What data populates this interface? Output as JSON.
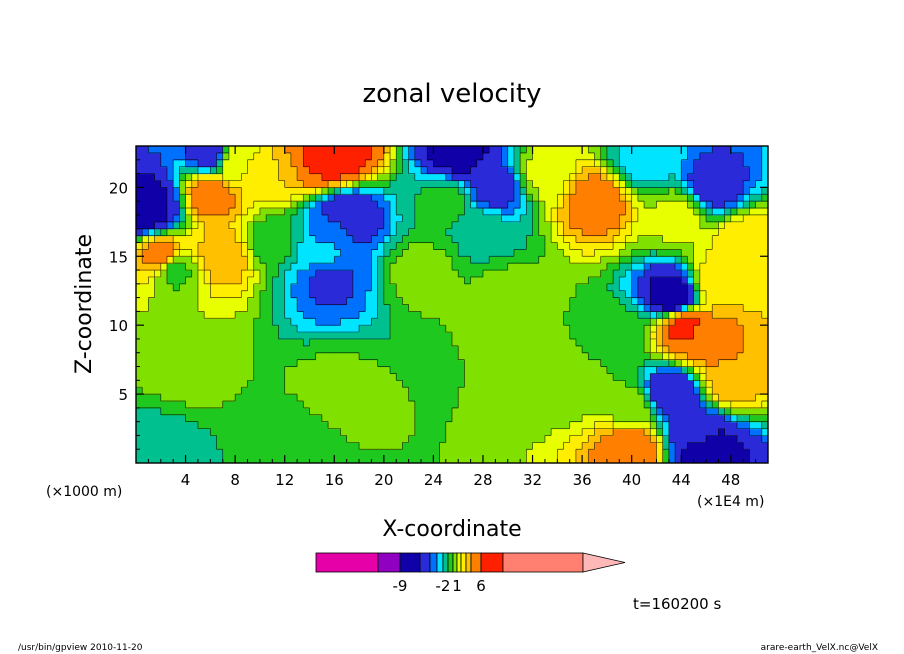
{
  "chart_data": {
    "type": "heatmap",
    "title": "zonal velocity",
    "xlabel": "X-coordinate",
    "ylabel": "Z-coordinate",
    "x_unit_left": "(×1000 m)",
    "x_unit_right": "(×1E4 m)",
    "xlim": [
      0,
      51
    ],
    "ylim": [
      0,
      23
    ],
    "x_ticks": [
      4,
      8,
      12,
      16,
      20,
      24,
      28,
      32,
      36,
      40,
      44,
      48
    ],
    "y_ticks": [
      5,
      10,
      15,
      20
    ],
    "time_label": "t=160200 s",
    "colorbar": {
      "tick_labels": [
        {
          "label": "-9",
          "value": -9
        },
        {
          "label": "-2",
          "value": -2
        },
        {
          "label": "1",
          "value": 1
        },
        {
          "label": "6",
          "value": 6
        }
      ],
      "levels": [
        -18,
        -12,
        -9,
        -6,
        -4,
        -3,
        -2,
        -1,
        0,
        1,
        2,
        3,
        4,
        6,
        9,
        18
      ],
      "colors": [
        "#e600a8",
        "#9000c0",
        "#1000a8",
        "#2a2ad8",
        "#0070ff",
        "#00e4ff",
        "#00c090",
        "#1ec81e",
        "#80e000",
        "#e8ff00",
        "#ffee00",
        "#ffc000",
        "#ff8000",
        "#ff2000",
        "#ff8070"
      ],
      "extend_color": "#ffb8b8"
    },
    "regions": [
      {
        "x": 30,
        "z": 12,
        "value": 0.5
      },
      {
        "x": 23,
        "z": 14,
        "value": 0.5
      },
      {
        "x": 16,
        "z": 5,
        "value": 0.5
      },
      {
        "x": 35,
        "z": 6,
        "value": 0.5
      },
      {
        "x": 40,
        "z": 4,
        "value": 0.5
      },
      {
        "x": 4,
        "z": 7,
        "value": 0.5
      },
      {
        "x": 11,
        "z": 16,
        "value": -0.5
      },
      {
        "x": 3,
        "z": 14,
        "value": -0.5
      },
      {
        "x": 25,
        "z": 19,
        "value": -0.5
      },
      {
        "x": 39,
        "z": 9,
        "value": -0.5
      },
      {
        "x": 2,
        "z": 1,
        "value": -1.5
      },
      {
        "x": 13,
        "z": 2,
        "value": -0.5
      },
      {
        "x": 15,
        "z": 15,
        "value": -2.5
      },
      {
        "x": 16,
        "z": 17,
        "value": -3.5
      },
      {
        "x": 15.5,
        "z": 13.5,
        "value": -4.5
      },
      {
        "x": 17,
        "z": 18,
        "value": -6
      },
      {
        "x": 28,
        "z": 17,
        "value": -1.5
      },
      {
        "x": 41,
        "z": 22,
        "value": -2.5
      },
      {
        "x": 46.5,
        "z": 20,
        "value": -5
      },
      {
        "x": 1,
        "z": 19,
        "value": -6
      },
      {
        "x": 0.8,
        "z": 18.5,
        "value": -8
      },
      {
        "x": 6,
        "z": 22.5,
        "value": -5
      },
      {
        "x": 26,
        "z": 22.5,
        "value": -7
      },
      {
        "x": 29,
        "z": 20,
        "value": -5
      },
      {
        "x": 15,
        "z": 22,
        "value": 6
      },
      {
        "x": 16,
        "z": 22.5,
        "value": 9
      },
      {
        "x": 2,
        "z": 15,
        "value": 5
      },
      {
        "x": 6,
        "z": 19.5,
        "value": 5
      },
      {
        "x": 7,
        "z": 15,
        "value": 4
      },
      {
        "x": 37,
        "z": 19,
        "value": 5
      },
      {
        "x": 11,
        "z": 21,
        "value": 3
      },
      {
        "x": 47,
        "z": 13,
        "value": 3
      },
      {
        "x": 46,
        "z": 9,
        "value": 5
      },
      {
        "x": 48,
        "z": 6,
        "value": 4
      },
      {
        "x": 40,
        "z": 1,
        "value": 6
      },
      {
        "x": 43.4,
        "z": 12,
        "value": -8
      },
      {
        "x": 43.2,
        "z": 5,
        "value": -6
      },
      {
        "x": 44.2,
        "z": 10,
        "value": 7
      },
      {
        "x": 45.5,
        "z": 2,
        "value": -5
      },
      {
        "x": 46,
        "z": 1,
        "value": -8
      },
      {
        "x": 44,
        "z": 18,
        "value": 1.5
      },
      {
        "x": 49,
        "z": 16,
        "value": 3
      },
      {
        "x": 33,
        "z": 21,
        "value": 1.5
      },
      {
        "x": 8,
        "z": 22,
        "value": 2
      }
    ]
  },
  "footer": {
    "left": "/usr/bin/gpview   2010-11-20",
    "right": "arare-earth_VelX.nc@VelX"
  }
}
